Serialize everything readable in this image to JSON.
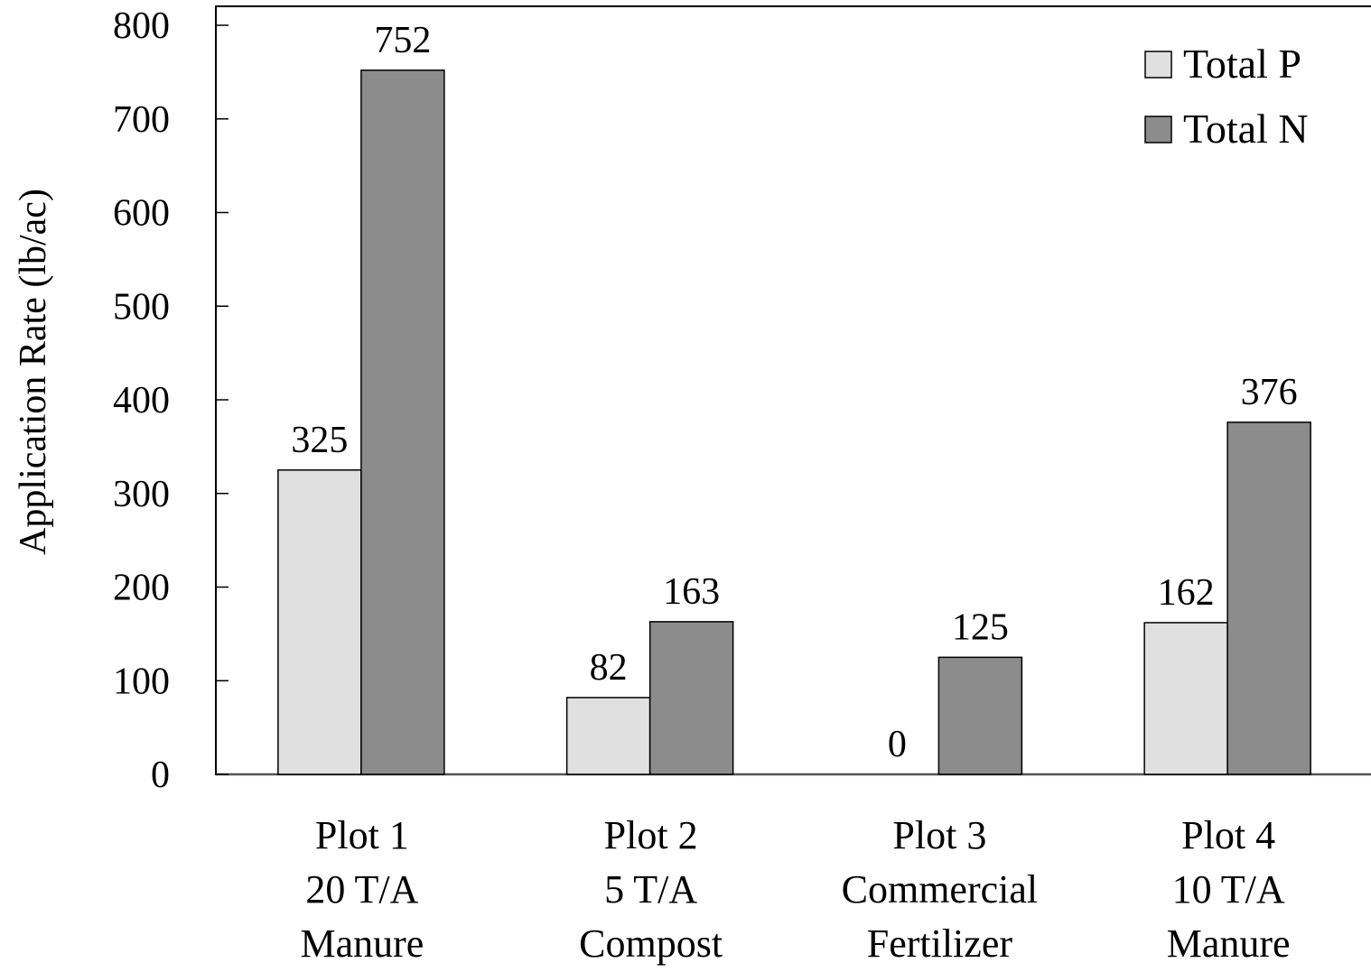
{
  "chart_data": {
    "type": "bar",
    "title": "",
    "xlabel": "",
    "ylabel": "Application Rate (lb/ac)",
    "ylim": [
      0,
      800
    ],
    "yticks": [
      0,
      100,
      200,
      300,
      400,
      500,
      600,
      700,
      800
    ],
    "grid": false,
    "legend_position": "top-right",
    "categories": [
      [
        "Plot 1",
        "20 T/A",
        "Manure"
      ],
      [
        "Plot 2",
        "5 T/A",
        "Compost"
      ],
      [
        "Plot 3",
        "Commercial",
        "Fertilizer"
      ],
      [
        "Plot 4",
        "10 T/A",
        "Manure"
      ]
    ],
    "series": [
      {
        "name": "Total P",
        "color": "#e0e0e0",
        "values": [
          325,
          82,
          0,
          162
        ]
      },
      {
        "name": "Total N",
        "color": "#8c8c8c",
        "values": [
          752,
          163,
          125,
          376
        ]
      }
    ]
  }
}
